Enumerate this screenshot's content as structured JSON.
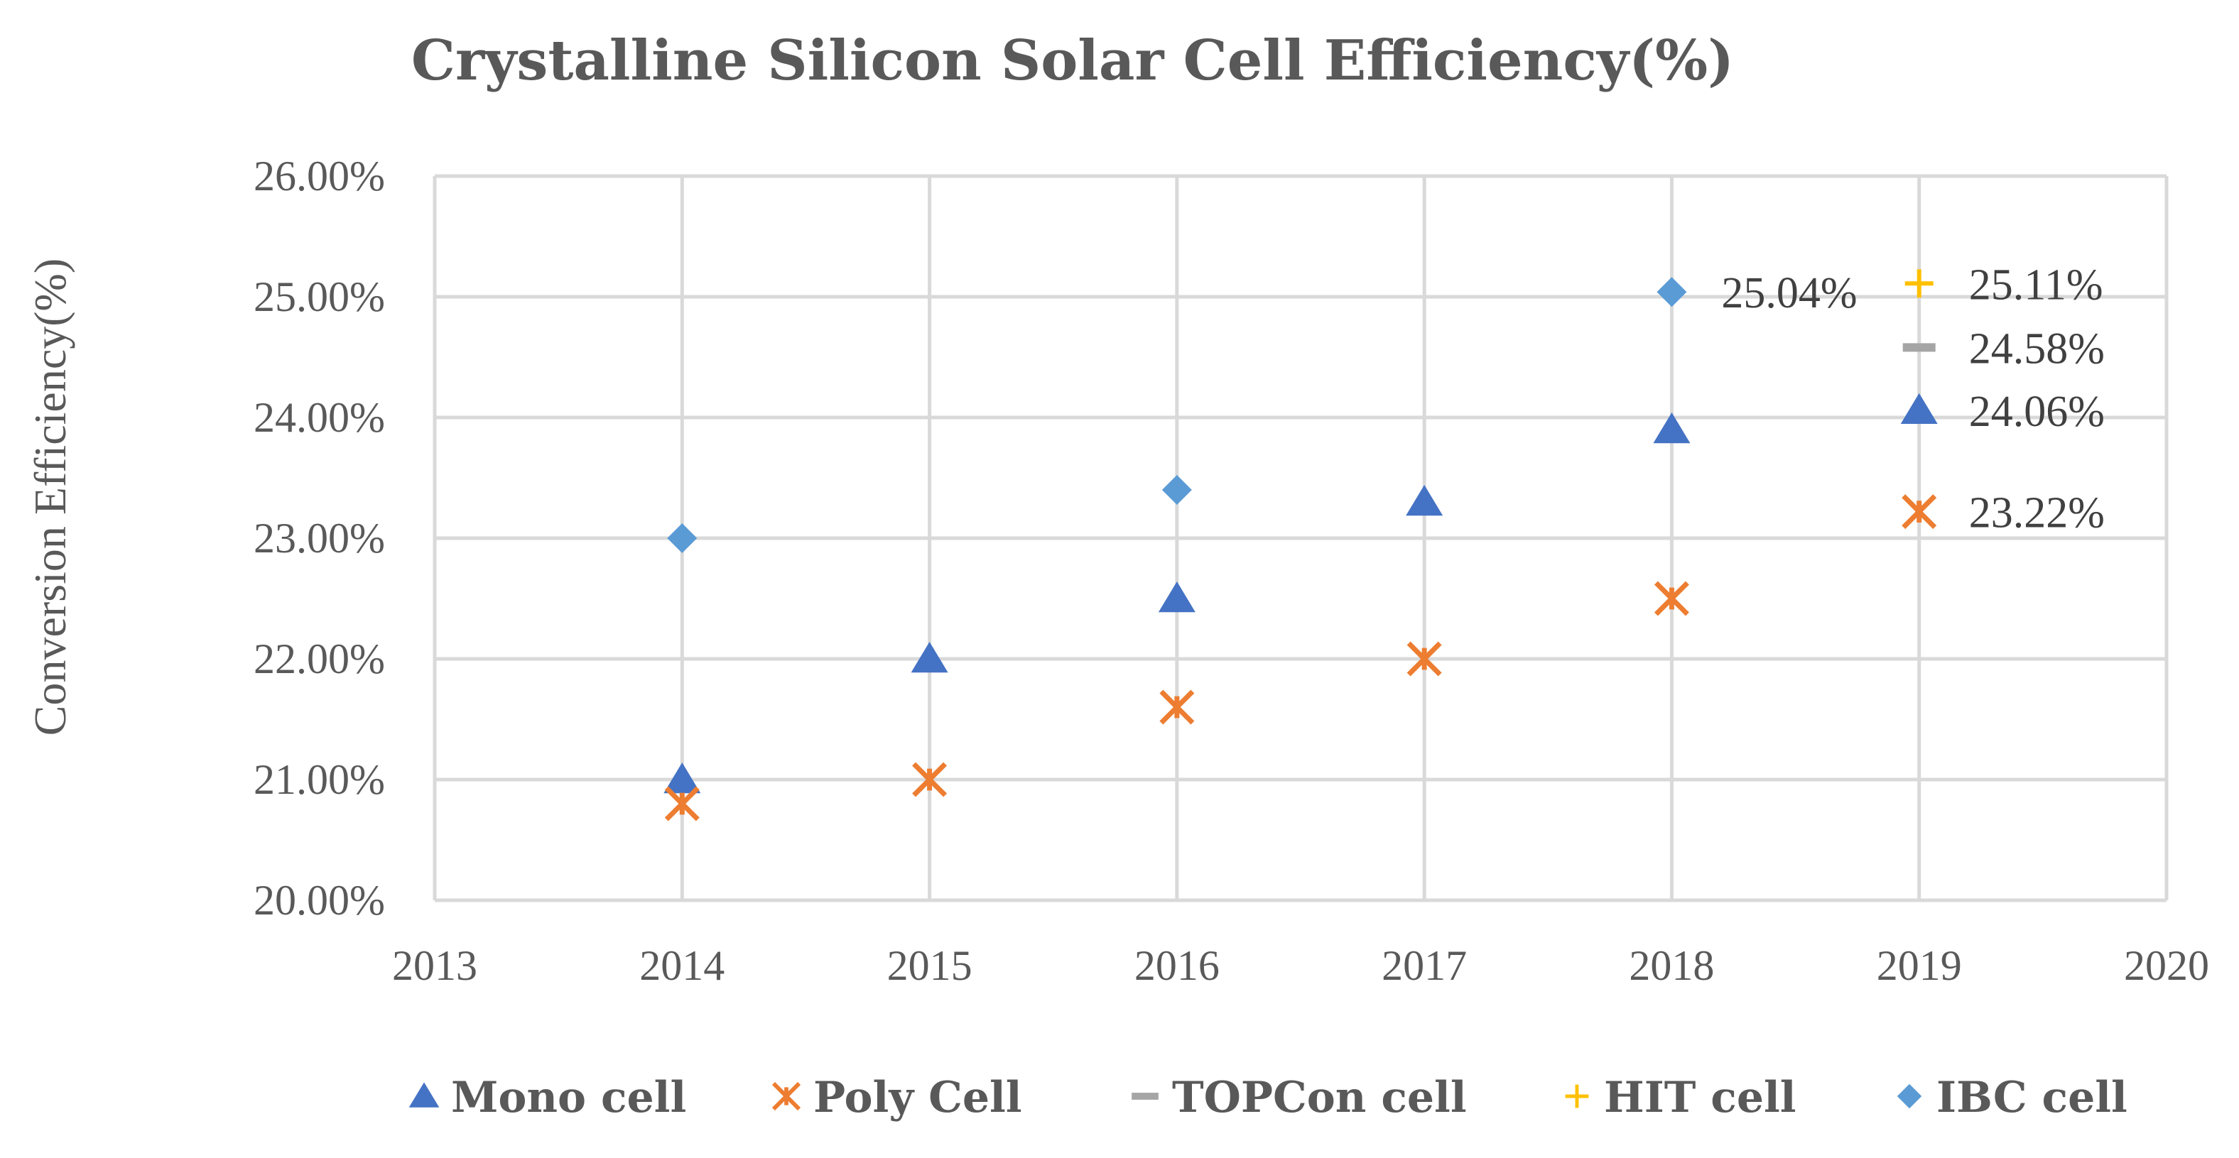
{
  "chart_data": {
    "type": "scatter",
    "title": "Crystalline Silicon Solar Cell Efficiency(%)",
    "xlabel": "",
    "ylabel": "Conversion Efficiency(%)",
    "xlim": [
      2013,
      2020
    ],
    "ylim": [
      20,
      26
    ],
    "xticks": [
      "2013",
      "2014",
      "2015",
      "2016",
      "2017",
      "2018",
      "2019",
      "2020"
    ],
    "yticks": [
      "20.00%",
      "21.00%",
      "22.00%",
      "23.00%",
      "24.00%",
      "25.00%",
      "26.00%"
    ],
    "grid": true,
    "legend_position": "bottom",
    "series": [
      {
        "name": "Mono cell",
        "marker": "triangle",
        "color": "#4472C4",
        "points": [
          {
            "x": 2014,
            "y": 21.0
          },
          {
            "x": 2015,
            "y": 22.0
          },
          {
            "x": 2016,
            "y": 22.5
          },
          {
            "x": 2017,
            "y": 23.3
          },
          {
            "x": 2018,
            "y": 23.9
          },
          {
            "x": 2019,
            "y": 24.06
          }
        ]
      },
      {
        "name": "Poly Cell",
        "marker": "star",
        "color": "#ED7D31",
        "points": [
          {
            "x": 2014,
            "y": 20.8
          },
          {
            "x": 2015,
            "y": 21.0
          },
          {
            "x": 2016,
            "y": 21.6
          },
          {
            "x": 2017,
            "y": 22.0
          },
          {
            "x": 2018,
            "y": 22.5
          },
          {
            "x": 2019,
            "y": 23.22
          }
        ]
      },
      {
        "name": "TOPCon cell",
        "marker": "dash",
        "color": "#A5A5A5",
        "points": [
          {
            "x": 2019,
            "y": 24.58
          }
        ]
      },
      {
        "name": "HIT cell",
        "marker": "plus",
        "color": "#FFC000",
        "points": [
          {
            "x": 2019,
            "y": 25.11
          }
        ]
      },
      {
        "name": "IBC cell",
        "marker": "diamond",
        "color": "#5B9BD5",
        "points": [
          {
            "x": 2014,
            "y": 23.0
          },
          {
            "x": 2016,
            "y": 23.4
          },
          {
            "x": 2018,
            "y": 25.04
          }
        ]
      }
    ],
    "annotations": [
      {
        "series": "IBC cell",
        "x": 2018,
        "y": 25.04,
        "text": "25.04%"
      },
      {
        "series": "HIT cell",
        "x": 2019,
        "y": 25.11,
        "text": "25.11%"
      },
      {
        "series": "TOPCon cell",
        "x": 2019,
        "y": 24.58,
        "text": "24.58%"
      },
      {
        "series": "Mono cell",
        "x": 2019,
        "y": 24.06,
        "text": "24.06%"
      },
      {
        "series": "Poly Cell",
        "x": 2019,
        "y": 23.22,
        "text": "23.22%"
      }
    ]
  }
}
